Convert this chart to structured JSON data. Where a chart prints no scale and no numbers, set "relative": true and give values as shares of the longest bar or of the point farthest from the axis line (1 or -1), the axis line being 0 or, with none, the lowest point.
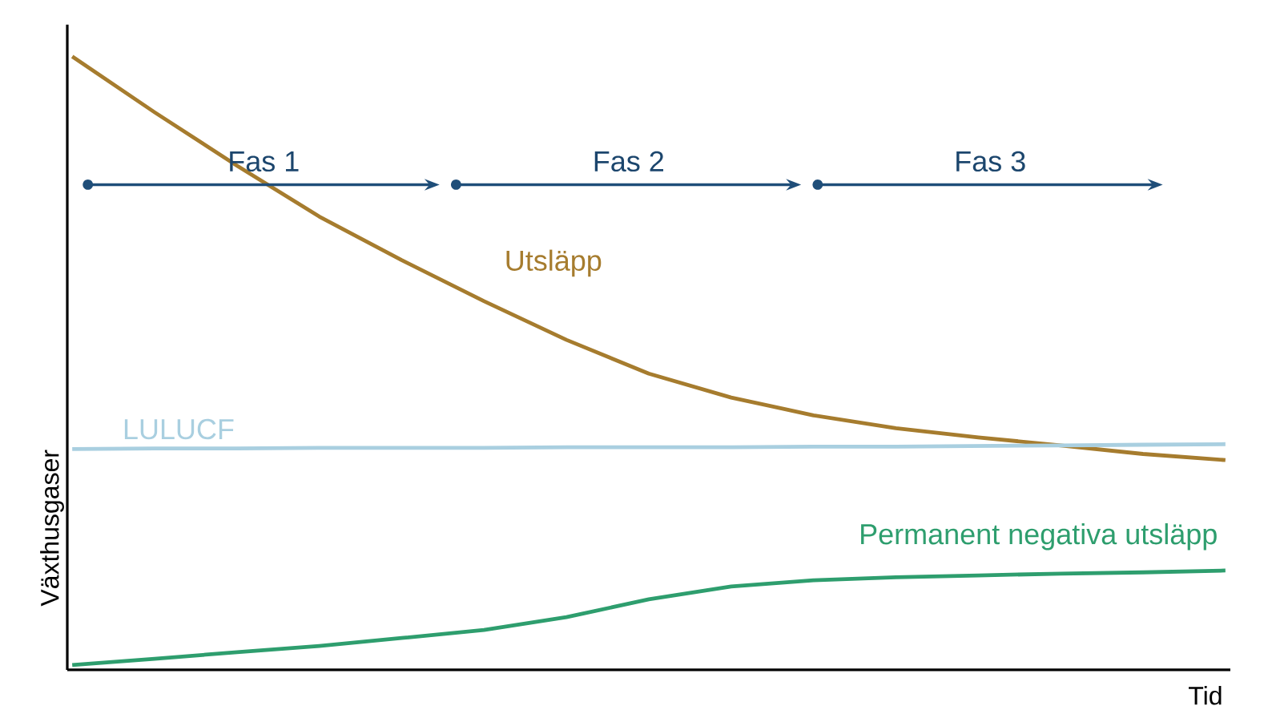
{
  "chart_data": {
    "type": "line",
    "relative": true,
    "xlabel": "Tid",
    "ylabel": "Växthusgaser",
    "legend": false,
    "marker": "none",
    "line_style": "solid",
    "categories": [
      null,
      null,
      null,
      null,
      null,
      null,
      null,
      null,
      null,
      null,
      null,
      null,
      null,
      null,
      null
    ],
    "annotations": [
      "Fas 1",
      "Fas 2",
      "Fas 3"
    ],
    "series": [
      {
        "name": "Utsläpp",
        "color": "#a67c2e",
        "values": [
          1.0,
          0.909,
          0.822,
          0.739,
          0.668,
          0.601,
          0.538,
          0.483,
          0.444,
          0.415,
          0.394,
          0.379,
          0.366,
          0.352,
          0.342
        ]
      },
      {
        "name": "LULUCF",
        "color": "#a9cfe0",
        "values": [
          0.36,
          0.361,
          0.361,
          0.362,
          0.362,
          0.362,
          0.363,
          0.363,
          0.363,
          0.364,
          0.364,
          0.365,
          0.366,
          0.367,
          0.368
        ]
      },
      {
        "name": "Permanent negativa utsläpp",
        "color": "#2e9e6e",
        "values": [
          0.008,
          0.018,
          0.029,
          0.039,
          0.052,
          0.065,
          0.086,
          0.115,
          0.136,
          0.146,
          0.151,
          0.154,
          0.157,
          0.159,
          0.162
        ]
      }
    ]
  }
}
